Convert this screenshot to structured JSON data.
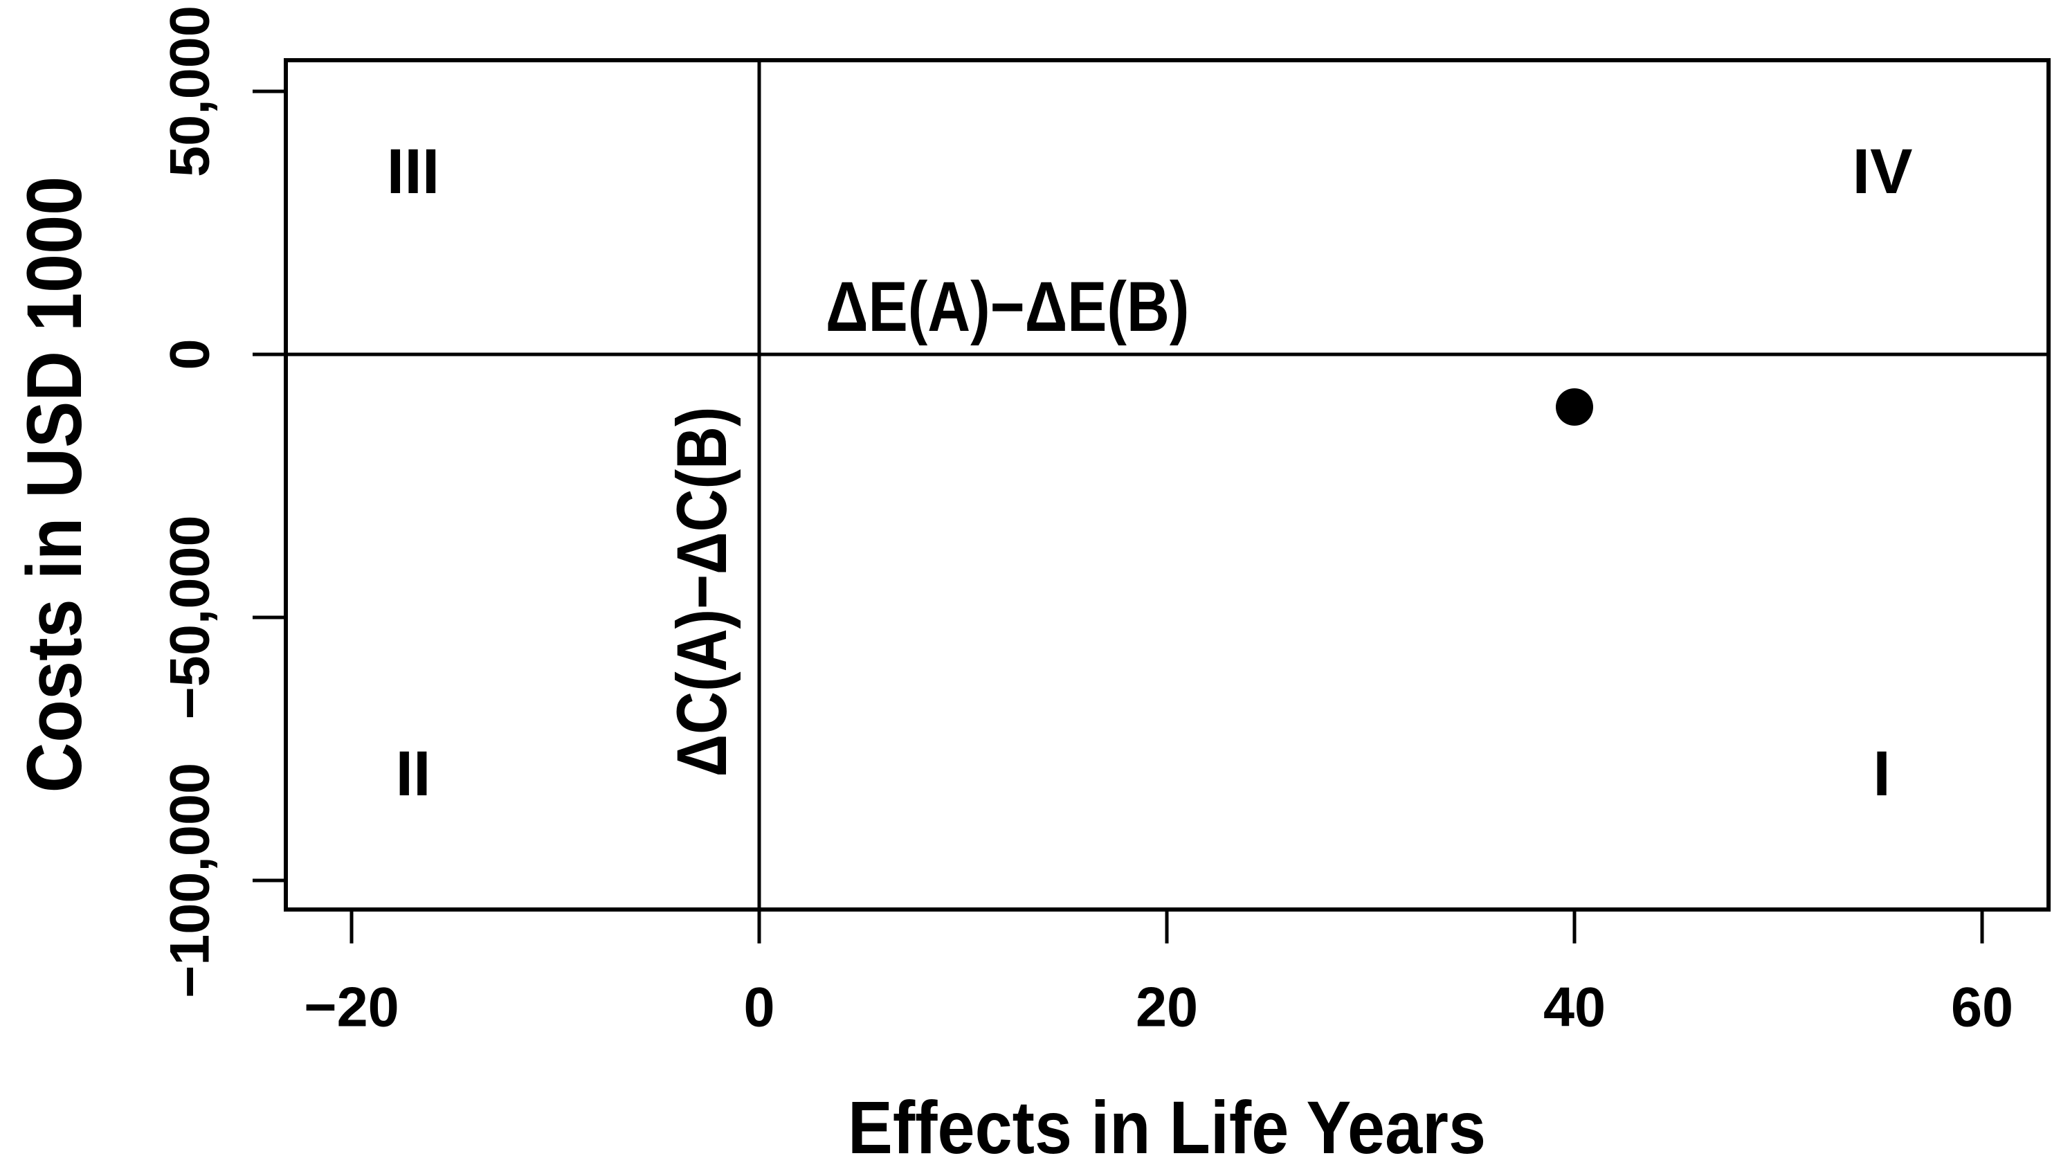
{
  "chart_data": {
    "type": "scatter",
    "title": "",
    "xlabel": "Effects in Life Years",
    "ylabel": "Costs in USD 1000",
    "x_ticks": [
      {
        "value": -20,
        "label": "−20"
      },
      {
        "value": 0,
        "label": "0"
      },
      {
        "value": 20,
        "label": "20"
      },
      {
        "value": 40,
        "label": "40"
      },
      {
        "value": 60,
        "label": "60"
      }
    ],
    "y_ticks": [
      {
        "value": 50000,
        "label": "50,000"
      },
      {
        "value": 0,
        "label": "0"
      },
      {
        "value": -50000,
        "label": "−50,000"
      },
      {
        "value": -100000,
        "label": "−100,000"
      }
    ],
    "xlim": [
      -23.2,
      63.2
    ],
    "ylim": [
      -105500,
      55900
    ],
    "grid": false,
    "legend": false,
    "reference_lines": {
      "horizontal_at_y": 0,
      "vertical_at_x": 0
    },
    "points": [
      {
        "x": 40,
        "y": -10000,
        "marker": "filled-circle",
        "color": "#000000"
      }
    ],
    "quadrant_labels": [
      {
        "text": "III",
        "position": "upper-left"
      },
      {
        "text": "IV",
        "position": "upper-right"
      },
      {
        "text": "II",
        "position": "lower-left"
      },
      {
        "text": "I",
        "position": "lower-right"
      }
    ],
    "axis_annotations": [
      {
        "text": "ΔE(A)−ΔE(B)",
        "axis": "x",
        "location": "right-of-origin-above-zero-line",
        "rotation": 0
      },
      {
        "text": "ΔC(A)−ΔC(B)",
        "axis": "y",
        "location": "left-of-origin-below-zero-line",
        "rotation": -90
      }
    ],
    "colors": {
      "foreground": "#000000",
      "background": "#ffffff"
    }
  }
}
